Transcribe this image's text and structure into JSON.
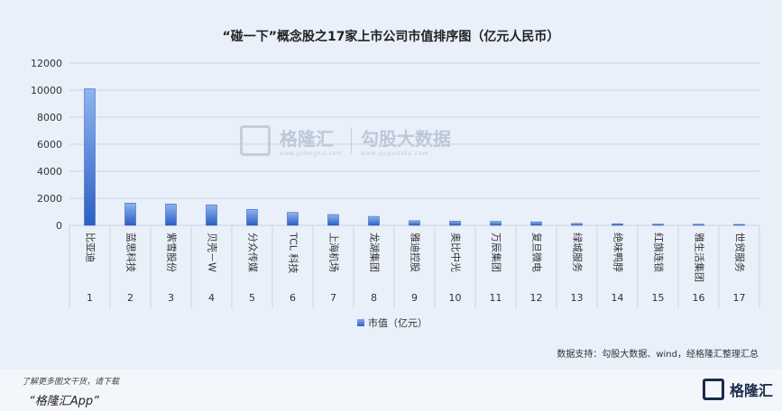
{
  "chart_data": {
    "type": "bar",
    "title": "“碰一下”概念股之17家上市公司市值排序图（亿元人民币）",
    "categories": [
      "比亚迪",
      "蓝思科技",
      "紫雪股份",
      "贝壳－W",
      "分众传媒",
      "TCL 科技",
      "上海机场",
      "龙湖集团",
      "雅迪控股",
      "奥比中光",
      "万辰集团",
      "复旦微电",
      "绿城服务",
      "绝味鸭脖",
      "红旗连锁",
      "雅生活集团",
      "世贸服务"
    ],
    "ranks": [
      "1",
      "2",
      "3",
      "4",
      "5",
      "6",
      "7",
      "8",
      "9",
      "10",
      "11",
      "12",
      "13",
      "14",
      "15",
      "16",
      "17"
    ],
    "series": [
      {
        "name": "市值（亿元）",
        "values": [
          10100,
          1650,
          1580,
          1520,
          1180,
          960,
          800,
          660,
          340,
          310,
          290,
          260,
          140,
          120,
          90,
          80,
          70
        ]
      }
    ],
    "ylim": [
      0,
      12000
    ],
    "yticks": [
      "0",
      "2000",
      "4000",
      "6000",
      "8000",
      "10000",
      "12000"
    ],
    "grid": true,
    "legend_position": "bottom"
  },
  "source_note": "数据支持：勾股大数据、wind，经格隆汇整理汇总",
  "watermark": {
    "brand": "格隆汇",
    "brand_sub": "www.gelonghui.com",
    "data_brand": "勾股大数据",
    "data_sub": "www.gogudata.com"
  },
  "footer": {
    "line1": "了解更多图文干货，请下载",
    "line2": "“格隆汇App”",
    "logo_text": "格隆汇"
  },
  "colors": {
    "bar_top": "#8fb4ee",
    "bar_bottom": "#2b5fc6",
    "grid": "#c9d3e2",
    "axis_text": "#333333"
  }
}
